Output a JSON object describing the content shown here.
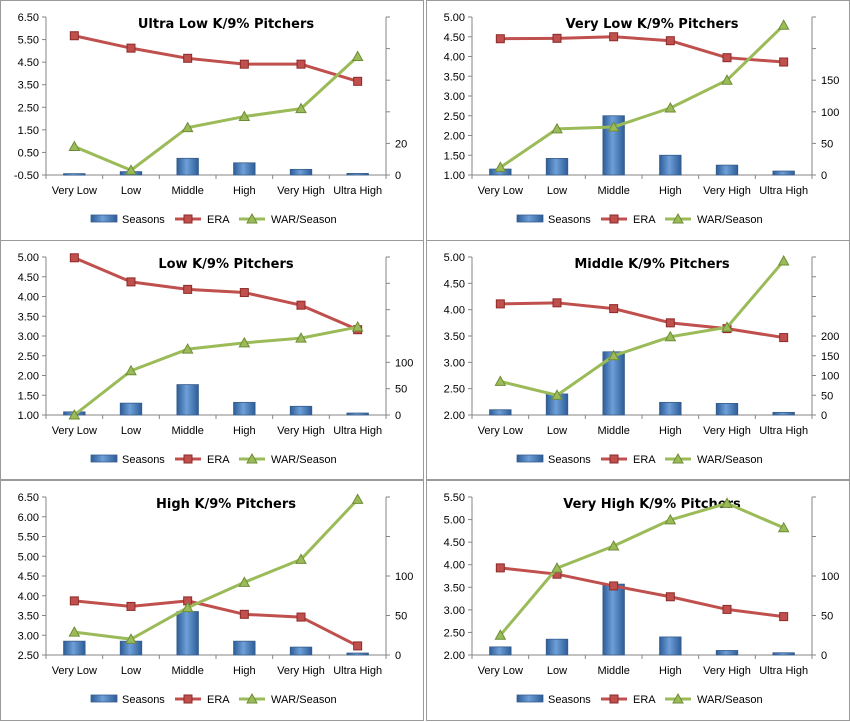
{
  "chart_data": [
    {
      "type": "bar+line",
      "title": "Ultra Low K/9% Pitchers",
      "categories": [
        "Very Low",
        "Low",
        "Middle",
        "High",
        "Very High",
        "Ultra High"
      ],
      "left_axis": {
        "min": -0.5,
        "max": 6.5,
        "ticks": [
          "-0.50",
          "0.50",
          "1.50",
          "2.50",
          "3.50",
          "4.50",
          "5.50",
          "6.50"
        ]
      },
      "right_axis": {
        "min": 0,
        "max": 100,
        "ticks": [
          "0",
          "20"
        ]
      },
      "series": [
        {
          "name": "Seasons",
          "kind": "bar",
          "axis": "left",
          "values": [
            -0.44,
            -0.35,
            0.24,
            0.04,
            -0.25,
            -0.43
          ]
        },
        {
          "name": "ERA",
          "kind": "line",
          "axis": "left",
          "values": [
            5.67,
            5.12,
            4.67,
            4.41,
            4.41,
            3.65
          ]
        },
        {
          "name": "WAR/Season",
          "kind": "line",
          "axis": "right",
          "values": [
            18,
            3,
            30,
            37,
            42,
            75
          ]
        }
      ],
      "legend": [
        "Seasons",
        "ERA",
        "WAR/Season"
      ],
      "legend_position": "bottom"
    },
    {
      "type": "bar+line",
      "title": "Very Low K/9% Pitchers",
      "categories": [
        "Very Low",
        "Low",
        "Middle",
        "High",
        "Very High",
        "Ultra High"
      ],
      "left_axis": {
        "min": 1.0,
        "max": 5.0,
        "ticks": [
          "1.00",
          "1.50",
          "2.00",
          "2.50",
          "3.00",
          "3.50",
          "4.00",
          "4.50",
          "5.00"
        ]
      },
      "right_axis": {
        "min": 0,
        "max": 250,
        "ticks": [
          "0",
          "50",
          "100",
          "150"
        ]
      },
      "series": [
        {
          "name": "Seasons",
          "kind": "bar",
          "axis": "left",
          "values": [
            1.15,
            1.42,
            2.5,
            1.5,
            1.25,
            1.1
          ]
        },
        {
          "name": "ERA",
          "kind": "line",
          "axis": "left",
          "values": [
            4.45,
            4.46,
            4.5,
            4.4,
            3.97,
            3.86
          ]
        },
        {
          "name": "WAR/Season",
          "kind": "line",
          "axis": "right",
          "values": [
            12,
            73,
            76,
            106,
            150,
            237
          ]
        }
      ],
      "legend": [
        "Seasons",
        "ERA",
        "WAR/Season"
      ],
      "legend_position": "bottom"
    },
    {
      "type": "bar+line",
      "title": "Low K/9% Pitchers",
      "categories": [
        "Very Low",
        "Low",
        "Middle",
        "High",
        "Very High",
        "Ultra High"
      ],
      "left_axis": {
        "min": 1.0,
        "max": 5.0,
        "ticks": [
          "1.00",
          "1.50",
          "2.00",
          "2.50",
          "3.00",
          "3.50",
          "4.00",
          "4.50",
          "5.00"
        ]
      },
      "right_axis": {
        "min": 0,
        "max": 300,
        "ticks": [
          "0",
          "50",
          "100"
        ]
      },
      "series": [
        {
          "name": "Seasons",
          "kind": "bar",
          "axis": "left",
          "values": [
            1.08,
            1.3,
            1.77,
            1.32,
            1.22,
            1.05
          ]
        },
        {
          "name": "ERA",
          "kind": "line",
          "axis": "left",
          "values": [
            4.98,
            4.37,
            4.18,
            4.1,
            3.78,
            3.16
          ]
        },
        {
          "name": "WAR/Season",
          "kind": "line",
          "axis": "right",
          "values": [
            0,
            84,
            125,
            137,
            146,
            167
          ]
        }
      ],
      "legend": [
        "Seasons",
        "ERA",
        "WAR/Season"
      ],
      "legend_position": "bottom"
    },
    {
      "type": "bar+line",
      "title": "Middle K/9% Pitchers",
      "categories": [
        "Very Low",
        "Low",
        "Middle",
        "High",
        "Very High",
        "Ultra High"
      ],
      "left_axis": {
        "min": 2.0,
        "max": 5.0,
        "ticks": [
          "2.00",
          "2.50",
          "3.00",
          "3.50",
          "4.00",
          "4.50",
          "5.00"
        ]
      },
      "right_axis": {
        "min": 0,
        "max": 400,
        "ticks": [
          "0",
          "50",
          "100",
          "150",
          "200"
        ]
      },
      "series": [
        {
          "name": "Seasons",
          "kind": "bar",
          "axis": "left",
          "values": [
            2.1,
            2.4,
            3.2,
            2.24,
            2.22,
            2.05
          ]
        },
        {
          "name": "ERA",
          "kind": "line",
          "axis": "left",
          "values": [
            4.11,
            4.13,
            4.02,
            3.75,
            3.64,
            3.47
          ]
        },
        {
          "name": "WAR/Season",
          "kind": "line",
          "axis": "right",
          "values": [
            85,
            50,
            150,
            198,
            222,
            390
          ]
        }
      ],
      "legend": [
        "Seasons",
        "ERA",
        "WAR/Season"
      ],
      "legend_position": "bottom"
    },
    {
      "type": "bar+line",
      "title": "High K/9% Pitchers",
      "categories": [
        "Very Low",
        "Low",
        "Middle",
        "High",
        "Very High",
        "Ultra High"
      ],
      "left_axis": {
        "min": 2.5,
        "max": 6.5,
        "ticks": [
          "2.50",
          "3.00",
          "3.50",
          "4.00",
          "4.50",
          "5.00",
          "5.50",
          "6.00",
          "6.50"
        ]
      },
      "right_axis": {
        "min": 0,
        "max": 200,
        "ticks": [
          "0",
          "50",
          "100"
        ]
      },
      "series": [
        {
          "name": "Seasons",
          "kind": "bar",
          "axis": "left",
          "values": [
            2.85,
            2.85,
            3.6,
            2.85,
            2.7,
            2.55
          ]
        },
        {
          "name": "ERA",
          "kind": "line",
          "axis": "left",
          "values": [
            3.87,
            3.73,
            3.87,
            3.53,
            3.46,
            2.73
          ]
        },
        {
          "name": "WAR/Season",
          "kind": "line",
          "axis": "right",
          "values": [
            29,
            20,
            60,
            92,
            121,
            197
          ]
        }
      ],
      "legend": [
        "Seasons",
        "ERA",
        "WAR/Season"
      ],
      "legend_position": "bottom"
    },
    {
      "type": "bar+line",
      "title": "Very High K/9% Pitchers",
      "categories": [
        "Very Low",
        "Low",
        "Middle",
        "High",
        "Very High",
        "Ultra High"
      ],
      "left_axis": {
        "min": 2.0,
        "max": 5.5,
        "ticks": [
          "2.00",
          "2.50",
          "3.00",
          "3.50",
          "4.00",
          "4.50",
          "5.00",
          "5.50"
        ]
      },
      "right_axis": {
        "min": 0,
        "max": 200,
        "ticks": [
          "0",
          "50",
          "100"
        ]
      },
      "series": [
        {
          "name": "Seasons",
          "kind": "bar",
          "axis": "left",
          "values": [
            2.18,
            2.35,
            3.57,
            2.4,
            2.1,
            2.05
          ]
        },
        {
          "name": "ERA",
          "kind": "line",
          "axis": "left",
          "values": [
            3.93,
            3.79,
            3.53,
            3.29,
            3.01,
            2.85
          ]
        },
        {
          "name": "WAR/Season",
          "kind": "line",
          "axis": "right",
          "values": [
            25,
            110,
            138,
            171,
            192,
            161
          ]
        }
      ],
      "legend": [
        "Seasons",
        "ERA",
        "WAR/Season"
      ],
      "legend_position": "bottom"
    }
  ]
}
